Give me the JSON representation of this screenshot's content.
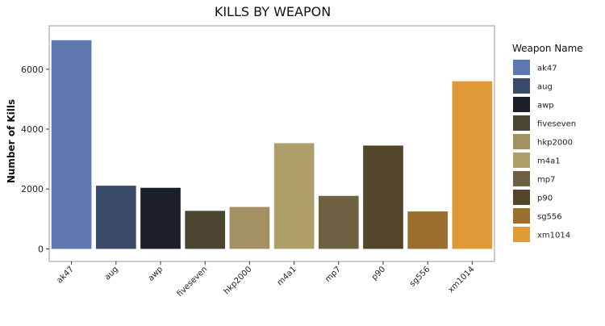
{
  "chart_data": {
    "type": "bar",
    "title": "KILLS BY WEAPON",
    "xlabel": "",
    "ylabel": "Number of Kills",
    "categories": [
      "ak47",
      "aug",
      "awp",
      "fiveseven",
      "hkp2000",
      "m4a1",
      "mp7",
      "p90",
      "sg556",
      "xm1014"
    ],
    "values": [
      6970,
      2110,
      2040,
      1270,
      1400,
      3530,
      1770,
      3450,
      1250,
      5600
    ],
    "colors": [
      "#5E79B1",
      "#3A4B6A",
      "#1B1F28",
      "#4A4632",
      "#A39063",
      "#AE9E6A",
      "#6E6142",
      "#52452A",
      "#9A6F2F",
      "#DE9A37"
    ],
    "ylim": [
      -420,
      7450
    ],
    "yticks": [
      0,
      2000,
      4000,
      6000
    ],
    "ytick_labels": [
      "0",
      "2000",
      "4000",
      "6000"
    ],
    "grid": false,
    "legend": {
      "title": "Weapon Name",
      "position": "right",
      "entries": [
        "ak47",
        "aug",
        "awp",
        "fiveseven",
        "hkp2000",
        "m4a1",
        "mp7",
        "p90",
        "sg556",
        "xm1014"
      ]
    }
  }
}
